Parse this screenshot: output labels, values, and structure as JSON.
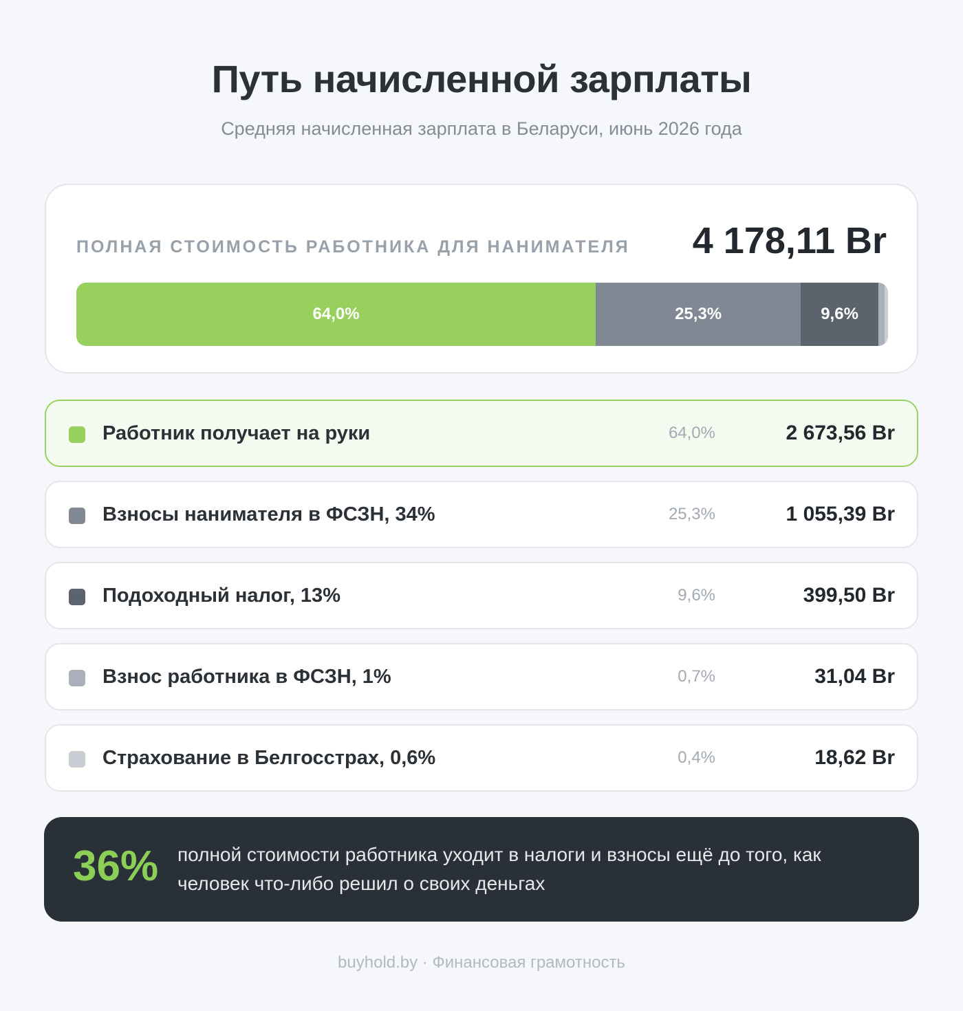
{
  "title": "Путь начисленной зарплаты",
  "subtitle": "Средняя начисленная зарплата в Беларуси, июнь 2026 года",
  "total": {
    "label": "ПОЛНАЯ СТОИМОСТЬ РАБОТНИКА ДЛЯ НАНИМАТЕЛЯ",
    "value": "4 178,11 Br"
  },
  "chart_data": {
    "type": "bar",
    "stacked": true,
    "orientation": "horizontal",
    "title": "Путь начисленной зарплаты",
    "subtitle": "Средняя начисленная зарплата в Беларуси, июнь 2026 года",
    "total": 4178.11,
    "unit": "Br",
    "categories": [
      "Работник получает на руки",
      "Взносы нанимателя в ФСЗН, 34%",
      "Подоходный налог, 13%",
      "Взнос работника в ФСЗН, 1%",
      "Страхование в Белгосстрах, 0,6%"
    ],
    "values": [
      2673.56,
      1055.39,
      399.5,
      31.04,
      18.62
    ],
    "shares_percent": [
      64.0,
      25.3,
      9.6,
      0.7,
      0.4
    ],
    "bar_labels": [
      "64,0%",
      "25,3%",
      "9,6%",
      "",
      ""
    ],
    "colors": [
      "#98d05e",
      "#7f8893",
      "#5b636d",
      "#a9b0b9",
      "#c9ced5"
    ],
    "legend": "rows below the bar"
  },
  "rows": [
    {
      "label": "Работник получает на руки",
      "pct": "64,0%",
      "value": "2 673,56 Br",
      "color": "#98d05e"
    },
    {
      "label": "Взносы нанимателя в ФСЗН, 34%",
      "pct": "25,3%",
      "value": "1 055,39 Br",
      "color": "#7f8893"
    },
    {
      "label": "Подоходный налог, 13%",
      "pct": "9,6%",
      "value": "399,50 Br",
      "color": "#5b636d"
    },
    {
      "label": "Взнос работника в ФСЗН, 1%",
      "pct": "0,7%",
      "value": "31,04 Br",
      "color": "#a9b0b9"
    },
    {
      "label": "Страхование в Белгосстрах, 0,6%",
      "pct": "0,4%",
      "value": "18,62 Br",
      "color": "#c9ced5"
    }
  ],
  "callout": {
    "number": "36%",
    "text": "полной стоимости работника уходит в налоги и взносы ещё до того, как человек что-либо решил о своих деньгах"
  },
  "footer": "buyhold.by · Финансовая грамотность"
}
